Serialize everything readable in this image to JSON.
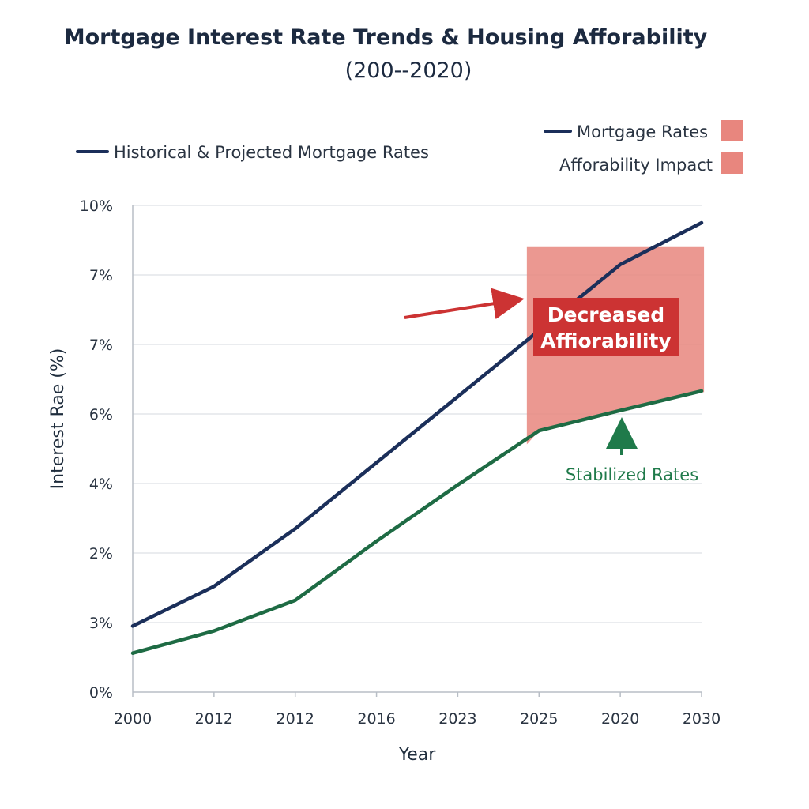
{
  "chart_data": {
    "type": "line",
    "title": "Mortgage Interest Rate Trends & Housing Afforability",
    "subtitle": "(200--2020)",
    "xlabel": "Year",
    "ylabel": "Interest Rae (%)",
    "x_tick_labels": [
      "2000",
      "2012",
      "2012",
      "2016",
      "2023",
      "2025",
      "2020",
      "2030"
    ],
    "y_tick_labels": [
      "0%",
      "3%",
      "2%",
      "4%",
      "6%",
      "7%",
      "7%",
      "10%"
    ],
    "y_tick_positions": [
      0,
      1,
      2,
      3,
      4,
      5,
      6,
      7
    ],
    "x_tick_positions": [
      0,
      1,
      2,
      3,
      4,
      5,
      6,
      7
    ],
    "ylim": [
      0,
      7
    ],
    "xlim": [
      0,
      7
    ],
    "grid": true,
    "series": [
      {
        "name": "Mortgage Rates",
        "color": "#1b2f5a",
        "points": [
          [
            0,
            0.95
          ],
          [
            1,
            1.52
          ],
          [
            2,
            2.35
          ],
          [
            3,
            3.3
          ],
          [
            4,
            4.25
          ],
          [
            5,
            5.2
          ],
          [
            6,
            6.15
          ],
          [
            7,
            6.75
          ]
        ]
      },
      {
        "name": "",
        "color": "#1e6b44",
        "points": [
          [
            0,
            0.56
          ],
          [
            1,
            0.88
          ],
          [
            2,
            1.32
          ],
          [
            3,
            2.17
          ],
          [
            4,
            2.98
          ],
          [
            5,
            3.76
          ],
          [
            6,
            4.05
          ],
          [
            7,
            4.33
          ]
        ]
      }
    ],
    "legend": {
      "left_label": "Historical & Projected Mortgage Rates",
      "items": [
        {
          "label": "Mortgage Rates",
          "color": "#1b2f5a",
          "swatch": "#e8867e"
        },
        {
          "label": "Afforability Impact",
          "swatch": "#e8867e"
        }
      ],
      "placement": "top-right"
    },
    "annotations": {
      "region": {
        "x_start": 4.85,
        "x_end": 7.03,
        "top_y": 6.4,
        "color": "#e8867e"
      },
      "callout": {
        "line1": "Decreased",
        "line2": "Affiorability",
        "color": "#cc3333"
      },
      "stabilized_label": "Stabilized Rates"
    }
  }
}
